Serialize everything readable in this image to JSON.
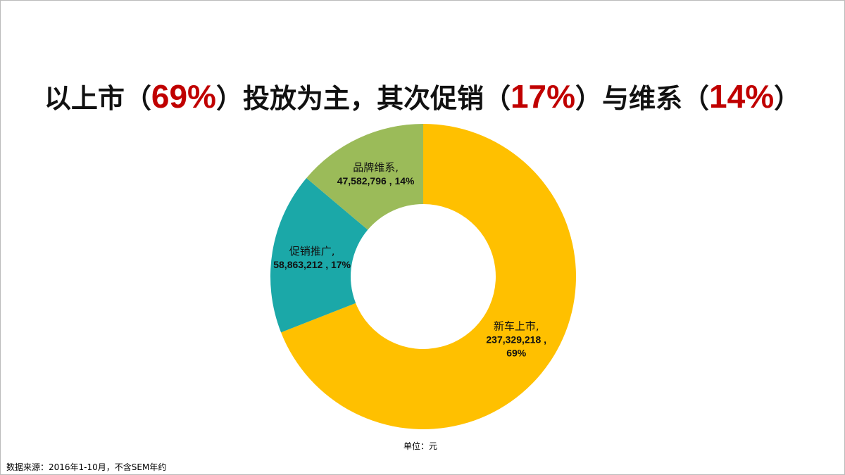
{
  "chart_data": {
    "type": "donut",
    "title": [
      "以上市（",
      "69%",
      "）投放为主，其次促销（",
      "17%",
      "）与维系（",
      "14%",
      "）"
    ],
    "categories": [
      "新车上市",
      "促销推广",
      "品牌维系"
    ],
    "values": [
      237329218,
      58863212,
      47582796
    ],
    "value_labels": [
      "237,329,218",
      "58,863,212",
      "47,582,796"
    ],
    "percents": [
      69,
      17,
      14
    ],
    "percent_labels": [
      "69%",
      "17%",
      "14%"
    ],
    "label_separator": ",",
    "value_separator": " , ",
    "colors": [
      "#FFC000",
      "#1BA8A8",
      "#9BBB59"
    ],
    "unit_note": "单位：元",
    "source_note": "数据来源：2016年1-10月，不含SEM年约"
  }
}
